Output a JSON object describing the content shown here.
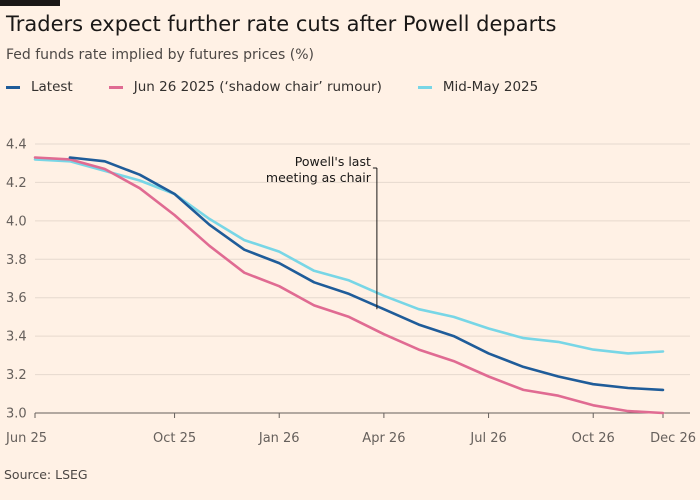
{
  "title": "Traders expect further rate cuts after Powell departs",
  "subtitle": "Fed funds rate implied by futures prices (%)",
  "source": "Source: LSEG",
  "chart_data": {
    "type": "line",
    "xlabel": "",
    "ylabel": "Fed funds rate implied by futures prices (%)",
    "ylim": [
      3.0,
      4.4
    ],
    "yticks": [
      3.0,
      3.2,
      3.4,
      3.6,
      3.8,
      4.0,
      4.2,
      4.4
    ],
    "xlim": [
      0,
      18
    ],
    "x_ticks": [
      {
        "x": 0,
        "label": "Jun 25"
      },
      {
        "x": 4,
        "label": "Oct 25"
      },
      {
        "x": 7,
        "label": "Jan 26"
      },
      {
        "x": 10,
        "label": "Apr 26"
      },
      {
        "x": 13,
        "label": "Jul 26"
      },
      {
        "x": 16,
        "label": "Oct 26"
      },
      {
        "x": 18,
        "label": "Dec 26"
      }
    ],
    "x": [
      0,
      1,
      2,
      3,
      4,
      5,
      6,
      7,
      8,
      9,
      10,
      11,
      12,
      13,
      14,
      15,
      16,
      17,
      18
    ],
    "series": [
      {
        "name": "Latest",
        "color": "#1f5c99",
        "x": [
          1,
          2,
          3,
          4,
          5,
          6,
          7,
          8,
          9,
          10,
          11,
          12,
          13,
          14,
          15,
          16,
          17,
          18
        ],
        "values": [
          4.33,
          4.31,
          4.24,
          4.14,
          3.98,
          3.85,
          3.78,
          3.68,
          3.62,
          3.54,
          3.46,
          3.4,
          3.31,
          3.24,
          3.19,
          3.15,
          3.13,
          3.12
        ]
      },
      {
        "name": "Jun 26 2025 (‘shadow chair’ rumour)",
        "color": "#e06b92",
        "x": [
          0,
          1,
          2,
          3,
          4,
          5,
          6,
          7,
          8,
          9,
          10,
          11,
          12,
          13,
          14,
          15,
          16,
          17,
          18
        ],
        "values": [
          4.33,
          4.32,
          4.27,
          4.17,
          4.03,
          3.87,
          3.73,
          3.66,
          3.56,
          3.5,
          3.41,
          3.33,
          3.27,
          3.19,
          3.12,
          3.09,
          3.04,
          3.01,
          3.0
        ]
      },
      {
        "name": "Mid-May 2025",
        "color": "#78d6e6",
        "x": [
          0,
          1,
          2,
          3,
          4,
          5,
          6,
          7,
          8,
          9,
          10,
          11,
          12,
          13,
          14,
          15,
          16,
          17,
          18
        ],
        "values": [
          4.32,
          4.31,
          4.26,
          4.21,
          4.14,
          4.01,
          3.9,
          3.84,
          3.74,
          3.69,
          3.61,
          3.54,
          3.5,
          3.44,
          3.39,
          3.37,
          3.33,
          3.31,
          3.32
        ]
      }
    ],
    "annotations": [
      {
        "text_lines": [
          "Powell's last",
          "meeting as chair"
        ],
        "x": 10,
        "y": 3.54
      }
    ]
  }
}
